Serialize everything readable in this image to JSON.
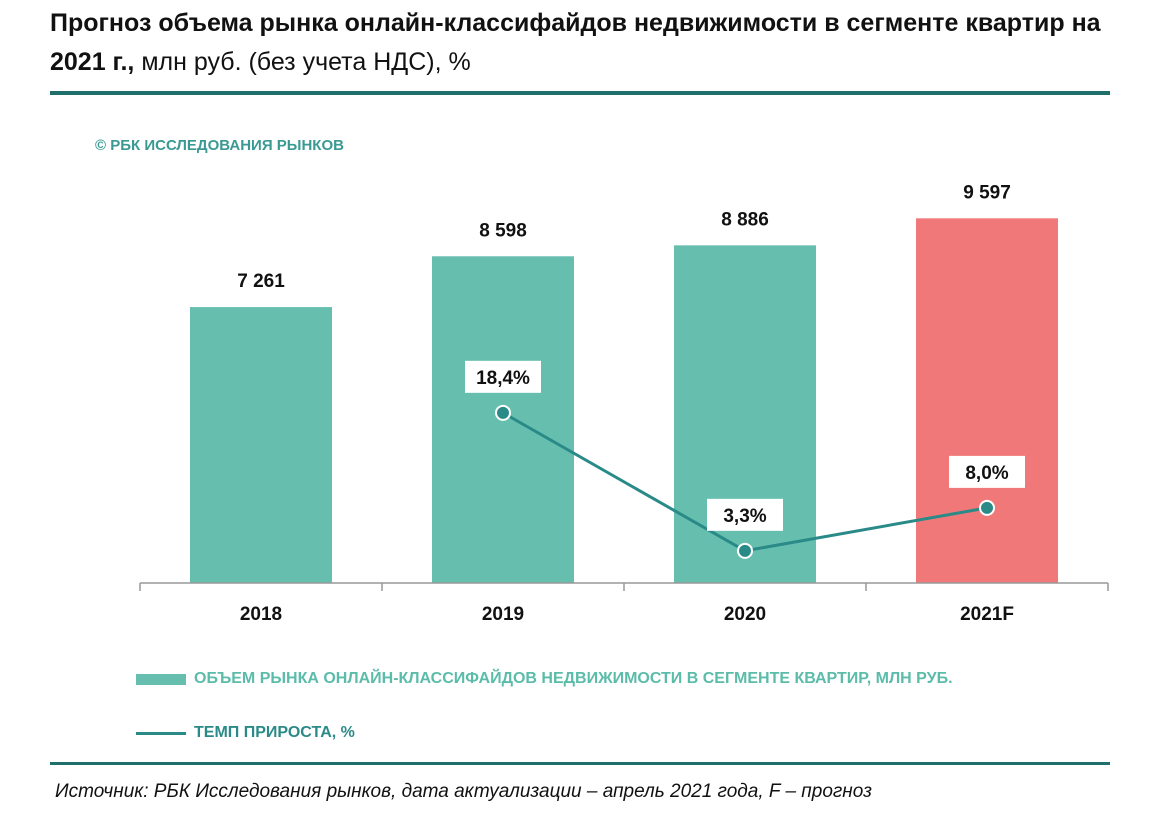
{
  "title": {
    "bold": "Прогноз объема рынка онлайн-классифайдов недвижимости в сегменте квартир на 2021 г.,",
    "normal": " млн руб. (без учета НДС), %"
  },
  "copyright": "© РБК ИССЛЕДОВАНИЯ РЫНКОВ",
  "source": "Источник: РБК Исследования рынков, дата актуализации – апрель 2021 года, F – прогноз",
  "chart_data": {
    "type": "bar",
    "categories": [
      "2018",
      "2019",
      "2020",
      "2021F"
    ],
    "series": [
      {
        "name": "ОБЪЕМ РЫНКА ОНЛАЙН-КЛАССИФАЙДОВ НЕДВИЖИМОСТИ В СЕГМЕНТЕ КВАРТИР, МЛН РУБ.",
        "type": "bar",
        "values": [
          7261,
          8598,
          8886,
          9597
        ],
        "labels": [
          "7 261",
          "8 598",
          "8 886",
          "9 597"
        ],
        "colors": [
          "#66bfae",
          "#66bfae",
          "#66bfae",
          "#f07878"
        ]
      },
      {
        "name": "ТЕМП ПРИРОСТА, %",
        "type": "line",
        "values": [
          null,
          18.4,
          3.3,
          8.0
        ],
        "labels": [
          "",
          "18,4%",
          "3,3%",
          "8,0%"
        ],
        "color": "#2a8a88"
      }
    ],
    "legend": "bottom",
    "grid": false
  }
}
